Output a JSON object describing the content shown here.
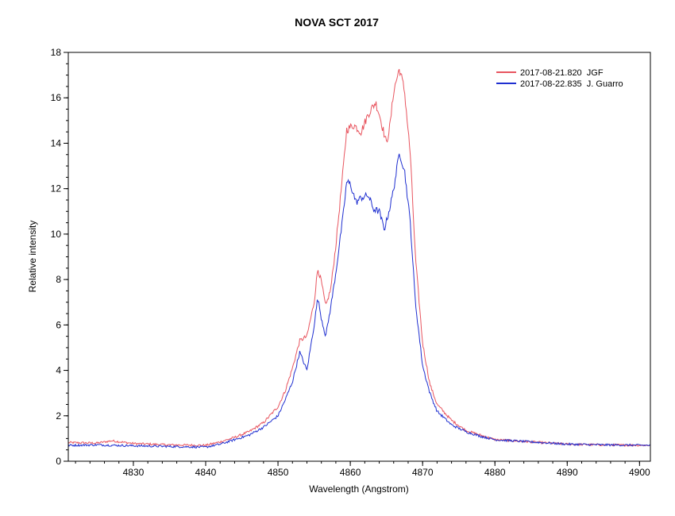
{
  "chart_data": {
    "type": "line",
    "title": "NOVA SCT 2017",
    "xlabel": "Wavelength (Angstrom)",
    "ylabel": "Relative intensity",
    "xlim": [
      4821,
      4901.5
    ],
    "ylim": [
      0,
      18
    ],
    "x_ticks": [
      4830,
      4840,
      4850,
      4860,
      4870,
      4880,
      4890,
      4900
    ],
    "y_ticks": [
      0,
      2,
      4,
      6,
      8,
      10,
      12,
      14,
      16,
      18
    ],
    "x_minor_step": 2,
    "y_minor_step": 0.5,
    "grid": false,
    "legend_position": "top-right",
    "series": [
      {
        "name": "2017-08-21.820  JGF",
        "color": "#e8555f",
        "points": [
          [
            4821,
            0.82
          ],
          [
            4825,
            0.8
          ],
          [
            4827,
            0.9
          ],
          [
            4830,
            0.78
          ],
          [
            4835,
            0.72
          ],
          [
            4840,
            0.7
          ],
          [
            4842,
            0.85
          ],
          [
            4844,
            1.05
          ],
          [
            4846,
            1.3
          ],
          [
            4848,
            1.7
          ],
          [
            4850,
            2.4
          ],
          [
            4851,
            3.1
          ],
          [
            4852,
            4.1
          ],
          [
            4853,
            5.3
          ],
          [
            4854,
            5.5
          ],
          [
            4855,
            7.0
          ],
          [
            4855.5,
            8.5
          ],
          [
            4856,
            7.9
          ],
          [
            4856.6,
            6.8
          ],
          [
            4857.3,
            7.6
          ],
          [
            4858,
            9.5
          ],
          [
            4859,
            12.8
          ],
          [
            4859.5,
            14.6
          ],
          [
            4860.5,
            14.8
          ],
          [
            4861.5,
            14.5
          ],
          [
            4862.5,
            15.3
          ],
          [
            4863.5,
            15.8
          ],
          [
            4864,
            15.3
          ],
          [
            4865,
            14.0
          ],
          [
            4865.5,
            14.8
          ],
          [
            4866,
            16.3
          ],
          [
            4866.8,
            17.3
          ],
          [
            4867.5,
            16.3
          ],
          [
            4868.3,
            13.5
          ],
          [
            4869,
            9.0
          ],
          [
            4870,
            5.2
          ],
          [
            4871,
            3.4
          ],
          [
            4872,
            2.5
          ],
          [
            4874,
            1.8
          ],
          [
            4876,
            1.35
          ],
          [
            4878,
            1.15
          ],
          [
            4880,
            0.95
          ],
          [
            4885,
            0.85
          ],
          [
            4890,
            0.75
          ],
          [
            4895,
            0.72
          ],
          [
            4901.5,
            0.7
          ]
        ]
      },
      {
        "name": "2017-08-22.835  J. Guarro",
        "color": "#1f2fd0",
        "points": [
          [
            4821,
            0.7
          ],
          [
            4825,
            0.72
          ],
          [
            4830,
            0.68
          ],
          [
            4835,
            0.65
          ],
          [
            4840,
            0.62
          ],
          [
            4842,
            0.75
          ],
          [
            4844,
            0.95
          ],
          [
            4846,
            1.15
          ],
          [
            4848,
            1.5
          ],
          [
            4850,
            2.0
          ],
          [
            4851,
            2.7
          ],
          [
            4852,
            3.5
          ],
          [
            4853,
            4.8
          ],
          [
            4854,
            4.0
          ],
          [
            4855,
            6.0
          ],
          [
            4855.5,
            7.2
          ],
          [
            4856,
            6.3
          ],
          [
            4856.6,
            5.5
          ],
          [
            4857.3,
            6.8
          ],
          [
            4858,
            8.3
          ],
          [
            4859,
            10.8
          ],
          [
            4859.5,
            12.3
          ],
          [
            4860,
            12.2
          ],
          [
            4860.8,
            11.4
          ],
          [
            4861.5,
            11.6
          ],
          [
            4862.5,
            11.7
          ],
          [
            4863.2,
            11.1
          ],
          [
            4864,
            11.0
          ],
          [
            4864.7,
            10.2
          ],
          [
            4865.5,
            11.2
          ],
          [
            4866,
            12.0
          ],
          [
            4866.8,
            13.6
          ],
          [
            4867.5,
            12.8
          ],
          [
            4868.3,
            10.5
          ],
          [
            4869,
            7.0
          ],
          [
            4870,
            4.2
          ],
          [
            4871,
            3.0
          ],
          [
            4872,
            2.2
          ],
          [
            4874,
            1.6
          ],
          [
            4876,
            1.3
          ],
          [
            4878,
            1.1
          ],
          [
            4880,
            0.95
          ],
          [
            4885,
            0.85
          ],
          [
            4890,
            0.75
          ],
          [
            4895,
            0.72
          ],
          [
            4901.5,
            0.7
          ]
        ]
      }
    ]
  }
}
